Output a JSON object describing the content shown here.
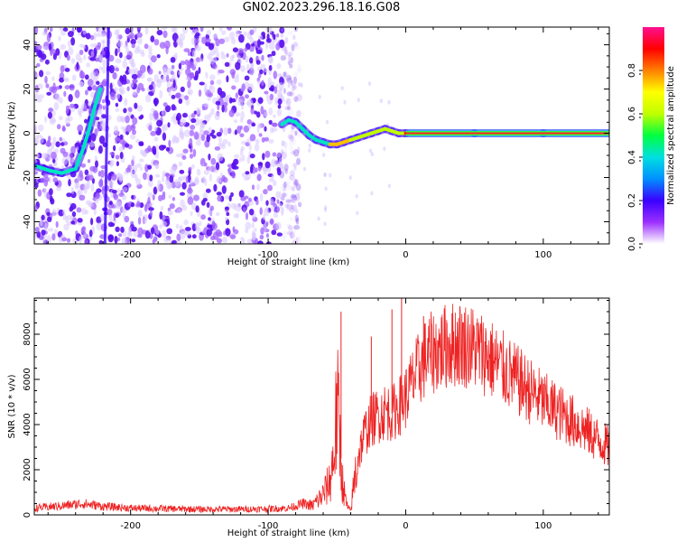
{
  "title": "GN02.2023.296.18.16.G08",
  "chart_data": [
    {
      "type": "heatmap",
      "xlabel": "Height of straight line (km)",
      "ylabel": "Frequency (Hz)",
      "xlim": [
        -270,
        148
      ],
      "ylim": [
        -50,
        48
      ],
      "x_ticks": [
        -200,
        -100,
        0,
        100
      ],
      "y_ticks": [
        -40,
        -20,
        0,
        20,
        40
      ],
      "colorbar": {
        "label": "Normalized spectral amplitude",
        "range": [
          0.0,
          1.0
        ],
        "ticks": [
          0.0,
          0.2,
          0.4,
          0.6,
          0.8
        ],
        "colormap": [
          "#ffffff",
          "#9b30ff",
          "#3a00ff",
          "#0090ff",
          "#00e0e0",
          "#00ff40",
          "#c0ff00",
          "#ffff00",
          "#ff8000",
          "#ff0000",
          "#ff1090"
        ]
      },
      "trace": {
        "x": [
          -268,
          -258,
          -250,
          -240,
          -235,
          -230,
          -226,
          -222,
          -90,
          -85,
          -80,
          -75,
          -70,
          -65,
          -60,
          -55,
          -50,
          -45,
          -40,
          -35,
          -30,
          -25,
          -20,
          -15,
          -10,
          -5,
          0,
          50,
          100,
          148
        ],
        "y": [
          -15,
          -17,
          -18,
          -16,
          -8,
          2,
          12,
          20,
          4,
          6,
          5,
          2,
          -1,
          -3,
          -4,
          -5,
          -5,
          -4,
          -3,
          -2,
          -1,
          0,
          1,
          2,
          1,
          0,
          0,
          0,
          0,
          0
        ]
      },
      "noise_region_x": [
        -270,
        -90
      ]
    },
    {
      "type": "line",
      "xlabel": "Height of straight line (km)",
      "ylabel": "SNR (10 * v/v)",
      "xlim": [
        -270,
        148
      ],
      "ylim": [
        0,
        9600
      ],
      "x_ticks": [
        -200,
        -100,
        0,
        100
      ],
      "y_ticks": [
        0,
        2000,
        4000,
        6000,
        8000
      ],
      "color": "#ee2222",
      "series": [
        {
          "x": [
            -270,
            -250,
            -235,
            -220,
            -200,
            -180,
            -150,
            -120,
            -100,
            -85,
            -75,
            -68,
            -60,
            -55,
            -52,
            -50,
            -48,
            -46,
            -44,
            -42,
            -40,
            -38,
            -35,
            -30,
            -25,
            -20,
            -15,
            -10,
            -5,
            0,
            5,
            10,
            15,
            20,
            25,
            30,
            40,
            50,
            60,
            70,
            80,
            90,
            100,
            110,
            120,
            130,
            140,
            148
          ],
          "y": [
            300,
            400,
            500,
            380,
            300,
            280,
            250,
            250,
            270,
            300,
            500,
            400,
            900,
            1500,
            2800,
            4800,
            3500,
            1500,
            700,
            300,
            150,
            1200,
            2500,
            3600,
            4200,
            4400,
            4600,
            4500,
            4800,
            5200,
            5900,
            6500,
            7000,
            7200,
            7300,
            7500,
            7600,
            7400,
            7000,
            6500,
            6000,
            5500,
            5000,
            4600,
            4200,
            3800,
            3300,
            3000
          ],
          "spikes": [
            {
              "x": -47,
              "y": 9000
            },
            {
              "x": -3,
              "y": 9600
            },
            {
              "x": -10,
              "y": 9100
            },
            {
              "x": 13,
              "y": 8800
            },
            {
              "x": -25,
              "y": 7900
            },
            {
              "x": 30,
              "y": 8500
            }
          ]
        }
      ]
    }
  ]
}
